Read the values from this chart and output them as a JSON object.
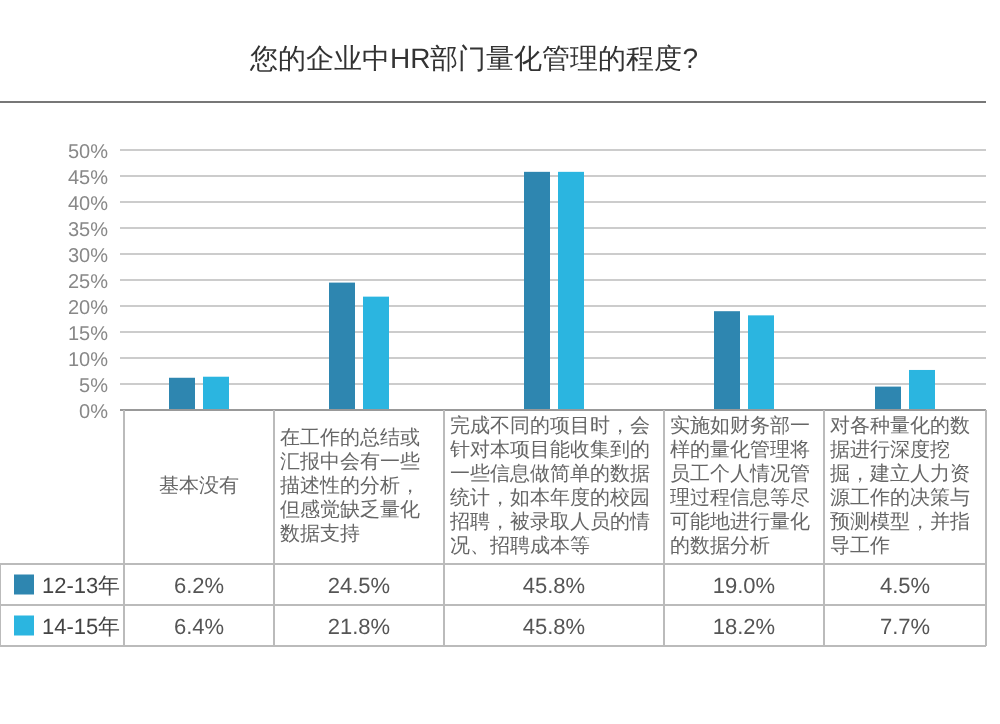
{
  "chart_data": {
    "type": "bar",
    "title": "您的企业中HR部门量化管理的程度?",
    "categories": [
      "基本没有",
      "在工作的总结或汇报中会有一些描述性的分析，但感觉缺乏量化数据支持",
      "完成不同的项目时，会针对本项目能收集到的一些信息做简单的数据统计，如本年度的校园招聘，被录取人员的情况、招聘成本等",
      "实施如财务部一样的量化管理将员工个人情况管理过程信息等尽可能地进行量化的数据分析",
      "对各种量化的数据进行深度挖掘，建立人力资源工作的决策与预测模型，并指导工作"
    ],
    "series": [
      {
        "name": "12-13年",
        "color": "#2e86b0",
        "values": [
          6.2,
          24.5,
          45.8,
          19.0,
          4.5
        ],
        "value_labels": [
          "6.2%",
          "24.5%",
          "45.8%",
          "19.0%",
          "4.5%"
        ]
      },
      {
        "name": "14-15年",
        "color": "#2bb5e0",
        "values": [
          6.4,
          21.8,
          45.8,
          18.2,
          7.7
        ],
        "value_labels": [
          "6.4%",
          "21.8%",
          "45.8%",
          "18.2%",
          "7.7%"
        ]
      }
    ],
    "ylim": [
      0,
      50
    ],
    "yticks": [
      {
        "value": 0,
        "label": "0%"
      },
      {
        "value": 5,
        "label": "5%"
      },
      {
        "value": 10,
        "label": "10%"
      },
      {
        "value": 15,
        "label": "15%"
      },
      {
        "value": 20,
        "label": "20%"
      },
      {
        "value": 25,
        "label": "25%"
      },
      {
        "value": 30,
        "label": "30%"
      },
      {
        "value": 35,
        "label": "35%"
      },
      {
        "value": 40,
        "label": "40%"
      },
      {
        "value": 45,
        "label": "45%"
      },
      {
        "value": 50,
        "label": "50%"
      }
    ],
    "grid": "y",
    "legend": "bottom left"
  }
}
